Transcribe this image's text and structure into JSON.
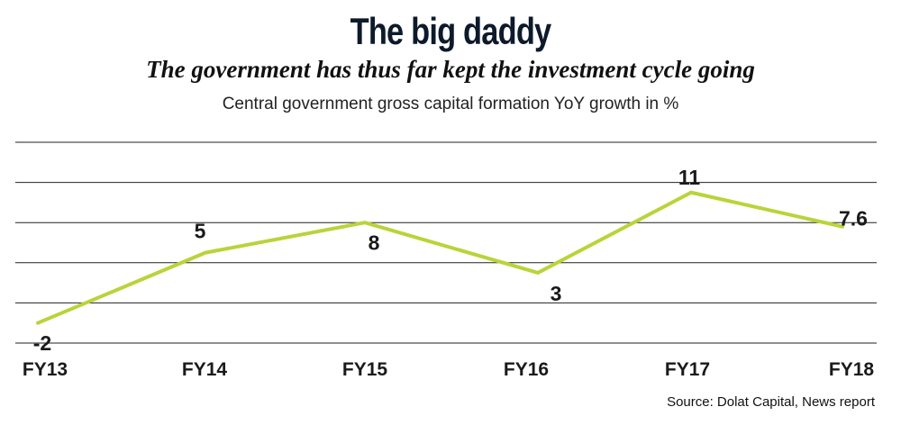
{
  "title": "The big daddy",
  "subtitle": "The government has thus far kept the investment cycle going",
  "caption": "Central government gross capital formation YoY growth in %",
  "source": "Source: Dolat Capital, News report",
  "colors": {
    "line": "#b8d43a",
    "text": "#1a1a1a",
    "grid": "#222222"
  },
  "chart_data": {
    "type": "line",
    "title": "The big daddy",
    "categories": [
      "FY13",
      "FY14",
      "FY15",
      "FY16",
      "FY17",
      "FY18"
    ],
    "values": [
      -2,
      5,
      8,
      3,
      11,
      7.6
    ],
    "data_labels": [
      "-2",
      "5",
      "8",
      "3",
      "11",
      "7.6"
    ],
    "ylim": [
      -4,
      16
    ],
    "grid": true,
    "legend": "none"
  }
}
